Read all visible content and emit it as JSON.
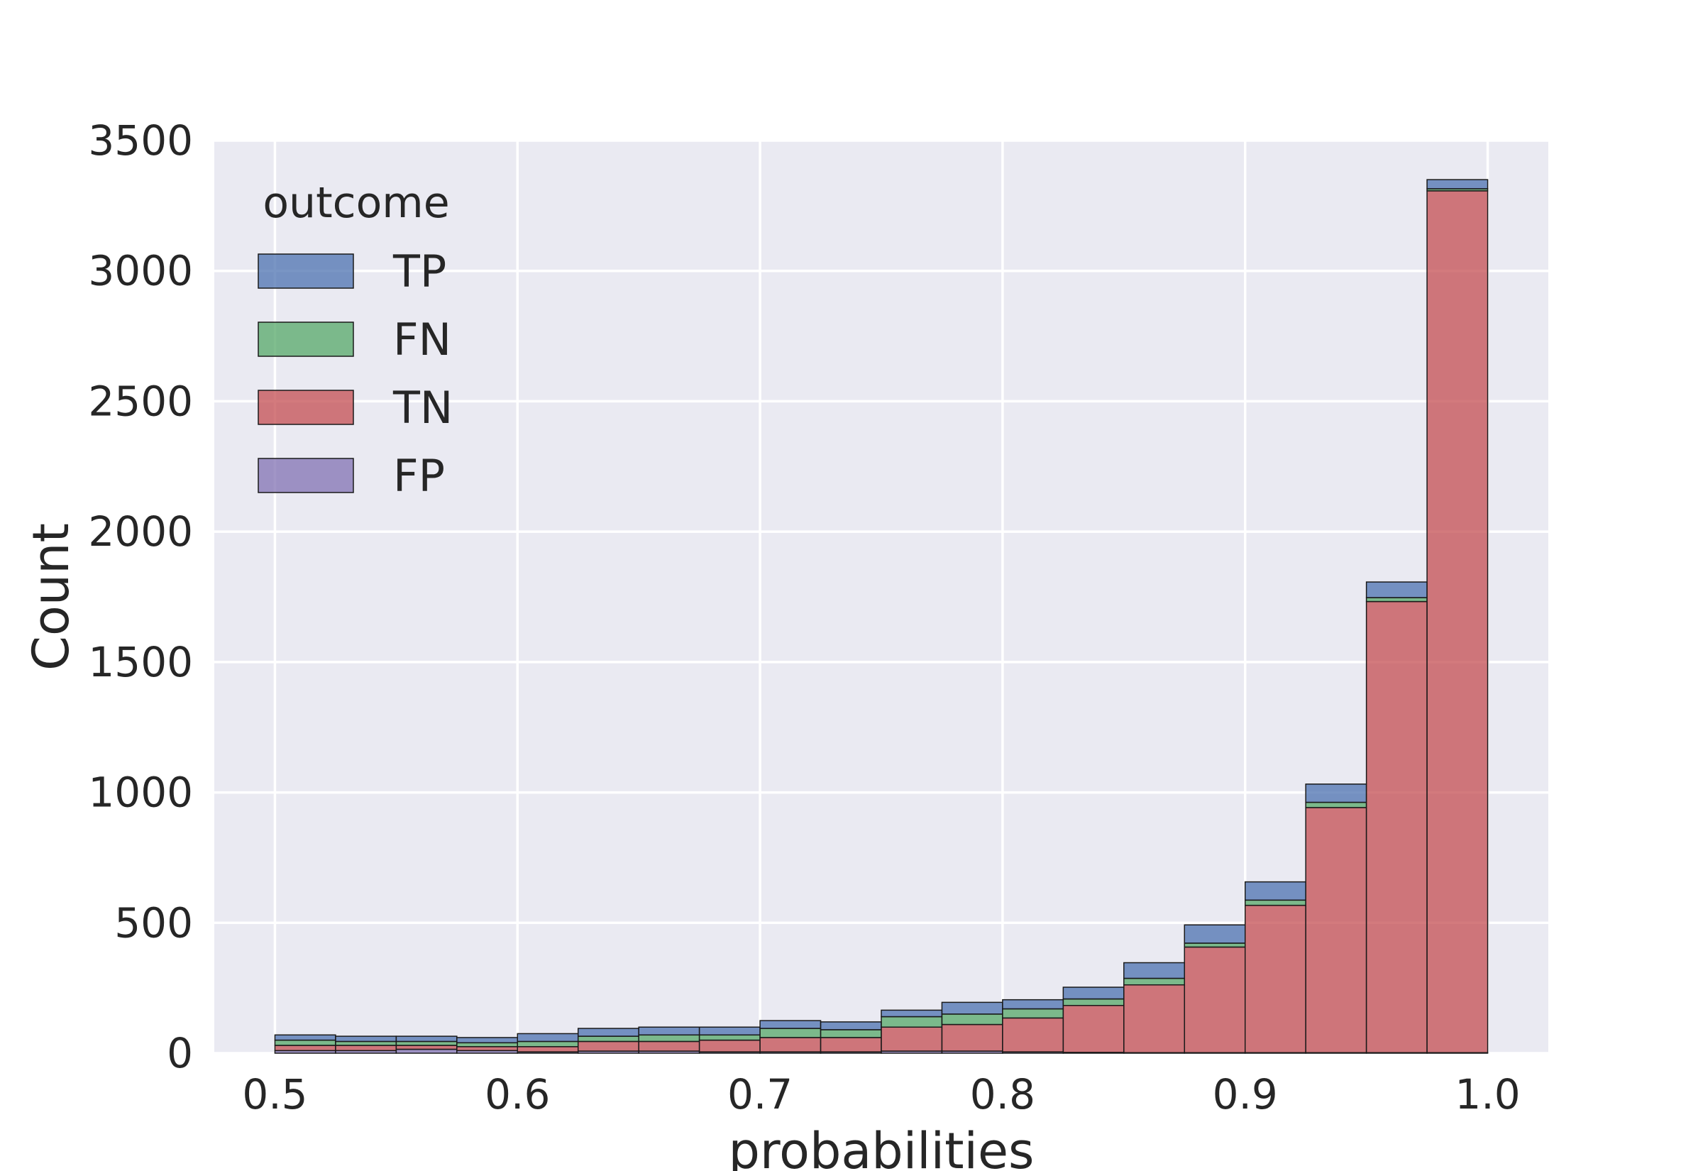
{
  "chart_data": {
    "type": "bar",
    "stacked": true,
    "xlabel": "probabilities",
    "ylabel": "Count",
    "xlim": [
      0.475,
      1.025
    ],
    "ylim": [
      0,
      3500
    ],
    "xticks": [
      "0.5",
      "0.6",
      "0.7",
      "0.8",
      "0.9",
      "1.0"
    ],
    "yticks": [
      "0",
      "500",
      "1000",
      "1500",
      "2000",
      "2500",
      "3000",
      "3500"
    ],
    "grid": true,
    "bin_edges": [
      0.5,
      0.525,
      0.55,
      0.575,
      0.6,
      0.625,
      0.65,
      0.675,
      0.7,
      0.725,
      0.75,
      0.775,
      0.8,
      0.825,
      0.85,
      0.875,
      0.9,
      0.925,
      0.95,
      0.975,
      1.0
    ],
    "legend": {
      "title": "outcome",
      "position": "upper-left"
    },
    "colors": {
      "TP": "#4c72b0",
      "FN": "#55a868",
      "TN": "#c44e52",
      "FP": "#8172b3"
    },
    "series": [
      {
        "name": "FP",
        "values": [
          10,
          10,
          15,
          10,
          5,
          8,
          8,
          5,
          5,
          5,
          8,
          8,
          5,
          3,
          2,
          2,
          2,
          2,
          2,
          2
        ]
      },
      {
        "name": "TN",
        "values": [
          20,
          20,
          15,
          15,
          20,
          37,
          37,
          45,
          55,
          55,
          92,
          102,
          130,
          180,
          260,
          405,
          565,
          940,
          1730,
          3305
        ]
      },
      {
        "name": "FN",
        "values": [
          20,
          15,
          15,
          15,
          20,
          20,
          25,
          20,
          35,
          30,
          40,
          40,
          35,
          25,
          25,
          15,
          20,
          20,
          15,
          8
        ]
      },
      {
        "name": "TP",
        "values": [
          20,
          20,
          20,
          20,
          30,
          30,
          30,
          30,
          30,
          30,
          25,
          45,
          35,
          45,
          60,
          70,
          70,
          70,
          60,
          35
        ]
      }
    ]
  }
}
